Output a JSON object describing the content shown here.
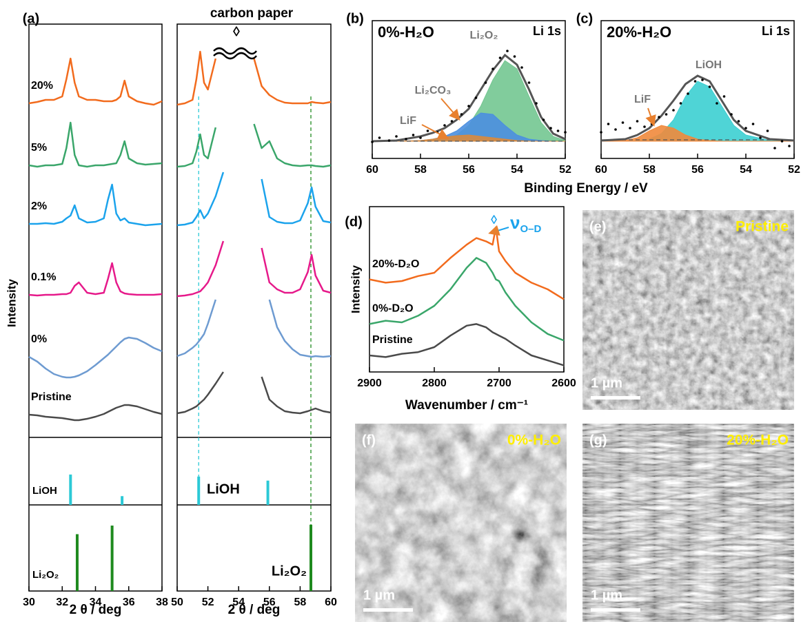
{
  "chart_data": [
    {
      "type": "line",
      "panel_label": "(a)",
      "xlabel": "2 θ / deg",
      "ylabel": "Intensity",
      "xlim": [
        30,
        38
      ],
      "xticks": [
        30,
        32,
        34,
        36,
        38
      ],
      "ylim": [
        0,
        600
      ],
      "x": [
        30,
        30.5,
        31,
        31.5,
        32,
        32.25,
        32.5,
        32.75,
        33,
        33.5,
        34,
        34.5,
        34.75,
        35,
        35.25,
        35.5,
        35.75,
        36,
        36.5,
        37,
        37.5,
        38
      ],
      "series": [
        {
          "name": "20%",
          "color": "#f26b1d",
          "values": [
            485,
            487,
            490,
            490,
            495,
            520,
            550,
            515,
            495,
            490,
            490,
            488,
            488,
            488,
            490,
            495,
            518,
            495,
            488,
            485,
            483,
            488
          ]
        },
        {
          "name": "5%",
          "color": "#3aa66a",
          "values": [
            395,
            393,
            395,
            395,
            397,
            420,
            457,
            410,
            395,
            393,
            395,
            395,
            396,
            397,
            398,
            410,
            430,
            405,
            398,
            396,
            397,
            398
          ]
        },
        {
          "name": "2%",
          "color": "#1ba3ec",
          "values": [
            310,
            310,
            311,
            310,
            313,
            318,
            322,
            337,
            318,
            312,
            313,
            318,
            345,
            367,
            325,
            315,
            318,
            312,
            310,
            308,
            309,
            310
          ]
        },
        {
          "name": "0.1%",
          "color": "#e6198a",
          "values": [
            207,
            206,
            207,
            207,
            208,
            208,
            210,
            220,
            225,
            210,
            208,
            210,
            230,
            253,
            225,
            212,
            209,
            208,
            207,
            207,
            207,
            208
          ]
        },
        {
          "name": "0%",
          "color": "#6e9bd1",
          "values": [
            117,
            110,
            100,
            92,
            88,
            87,
            87,
            88,
            90,
            96,
            105,
            115,
            120,
            126,
            132,
            138,
            143,
            145,
            143,
            137,
            130,
            125
          ]
        },
        {
          "name": "Pristine",
          "color": "#4a4a4a",
          "values": [
            33,
            32,
            30,
            29,
            28,
            27,
            26,
            25,
            25,
            27,
            30,
            34,
            37,
            40,
            43,
            45,
            47,
            47,
            45,
            41,
            37,
            34
          ]
        }
      ],
      "ref_ylim": [
        0,
        100
      ],
      "references": [
        {
          "name": "LiOH",
          "color": "#2bc9d6",
          "x": [
            32.5,
            35.6
          ],
          "values": [
            45,
            13
          ]
        },
        {
          "name": "Li₂O₂",
          "color": "#1e8a1e",
          "x": [
            32.9,
            35.0
          ],
          "values": [
            66,
            76
          ]
        }
      ]
    },
    {
      "type": "line",
      "title": "carbon paper",
      "annotation": "◊",
      "xlabel": "2 θ / deg",
      "xlim": [
        50,
        60
      ],
      "xticks": [
        50,
        52,
        54,
        56,
        58,
        60
      ],
      "ylim": [
        0,
        600
      ],
      "x": [
        50,
        50.5,
        51,
        51.25,
        51.5,
        51.75,
        52,
        52.5,
        53,
        53.5,
        54,
        54.5,
        55,
        55.5,
        56,
        56.5,
        57,
        57.5,
        58,
        58.5,
        58.75,
        59,
        59.5,
        60
      ],
      "series": [
        {
          "color": "#f26b1d",
          "values": [
            483,
            485,
            490,
            520,
            560,
            515,
            505,
            550,
            null,
            null,
            null,
            null,
            550,
            510,
            497,
            490,
            486,
            485,
            485,
            485,
            487,
            486,
            485,
            487
          ]
        },
        {
          "color": "#3aa66a",
          "values": [
            393,
            394,
            398,
            415,
            440,
            410,
            405,
            450,
            null,
            null,
            null,
            null,
            455,
            420,
            430,
            405,
            398,
            395,
            394,
            395,
            395,
            394,
            393,
            395
          ]
        },
        {
          "color": "#1ba3ec",
          "values": [
            308,
            309,
            312,
            320,
            330,
            318,
            325,
            350,
            385,
            null,
            null,
            null,
            null,
            375,
            320,
            313,
            311,
            311,
            315,
            340,
            363,
            335,
            314,
            312
          ]
        },
        {
          "color": "#e6198a",
          "values": [
            205,
            206,
            208,
            210,
            212,
            218,
            225,
            250,
            285,
            null,
            null,
            null,
            null,
            275,
            225,
            215,
            210,
            210,
            215,
            240,
            265,
            235,
            213,
            210
          ]
        },
        {
          "color": "#6e9bd1",
          "values": [
            118,
            122,
            130,
            135,
            142,
            150,
            165,
            200,
            null,
            null,
            null,
            null,
            null,
            null,
            200,
            160,
            140,
            128,
            120,
            118,
            117,
            118,
            117,
            118
          ]
        },
        {
          "color": "#4a4a4a",
          "values": [
            35,
            37,
            42,
            45,
            50,
            55,
            62,
            78,
            95,
            null,
            null,
            null,
            null,
            88,
            55,
            45,
            38,
            36,
            35,
            38,
            40,
            42,
            38,
            36
          ]
        }
      ],
      "ref_ylim": [
        0,
        100
      ],
      "references": [
        {
          "name": "LiOH",
          "color": "#2bc9d6",
          "x": [
            51.4,
            55.9
          ],
          "values": [
            42,
            36
          ]
        },
        {
          "name": "Li₂O₂",
          "color": "#1e8a1e",
          "x": [
            58.7
          ],
          "values": [
            77
          ]
        }
      ]
    },
    {
      "type": "xps",
      "panel_label": "(b)",
      "title": "0%-H₂O",
      "subtitle": "Li 1s",
      "xlabel": "Binding Energy / eV",
      "xlim": [
        60,
        52
      ],
      "xticks": [
        60,
        58,
        56,
        54,
        52
      ],
      "ylim": [
        0,
        100
      ],
      "baseline": 12.5,
      "points": {
        "x": [
          60,
          59.7,
          59.3,
          59,
          58.6,
          58.3,
          58,
          57.7,
          57.3,
          57,
          56.7,
          56.3,
          56,
          55.7,
          55.3,
          55,
          54.7,
          54.4,
          54.1,
          53.8,
          53.5,
          53.2,
          52.9,
          52.6,
          52.3,
          52
        ],
        "values": [
          12,
          15,
          13,
          16,
          14,
          17,
          15,
          20,
          19,
          24,
          27,
          32,
          38,
          44,
          55,
          65,
          73,
          78,
          74,
          66,
          55,
          40,
          28,
          22,
          20,
          19
        ]
      },
      "x": [
        60,
        59,
        58,
        57.5,
        57,
        56.5,
        56,
        55.5,
        55,
        54.5,
        54,
        53.5,
        53,
        52.5,
        52
      ],
      "envelope": {
        "color": "#555555",
        "values": [
          12.5,
          13,
          16,
          18.5,
          22,
          28,
          36,
          50,
          64,
          75,
          68,
          50,
          30,
          18,
          14
        ]
      },
      "components": [
        {
          "name": "LiF",
          "color": "#d9893c",
          "values": [
            12.5,
            12.5,
            13,
            14,
            15.5,
            16.5,
            17,
            16,
            15,
            14,
            13,
            12.6,
            12.5,
            12.5,
            12.5
          ]
        },
        {
          "name": "Li₂CO₃",
          "color": "#4b8fe0",
          "values": [
            12.5,
            12.5,
            13,
            14,
            16,
            20,
            27,
            33,
            32,
            24,
            17,
            14,
            13,
            12.5,
            12.5
          ]
        },
        {
          "name": "Li₂O₂",
          "color": "#73c691",
          "values": [
            12.5,
            12.5,
            12.6,
            13,
            14,
            17,
            24,
            38,
            57,
            71,
            65,
            45,
            26,
            16,
            13
          ]
        }
      ]
    },
    {
      "type": "xps",
      "panel_label": "(c)",
      "title": "20%-H₂O",
      "subtitle": "Li 1s",
      "xlim": [
        60,
        52
      ],
      "xticks": [
        60,
        58,
        56,
        54,
        52
      ],
      "ylim": [
        0,
        100
      ],
      "baseline": 13.5,
      "points": {
        "x": [
          60,
          59.7,
          59.4,
          59.1,
          58.8,
          58.5,
          58.2,
          57.9,
          57.6,
          57.3,
          57,
          56.7,
          56.4,
          56.1,
          55.8,
          55.5,
          55.2,
          54.9,
          54.6,
          54.3,
          54,
          53.7,
          53.4,
          53.1,
          52.8,
          52.5,
          52.2
        ],
        "values": [
          19,
          25,
          21,
          26,
          22,
          27,
          23,
          25,
          30,
          32,
          35,
          40,
          47,
          56,
          57,
          52,
          40,
          45,
          32,
          27,
          22,
          25,
          15,
          20,
          7.5,
          12.5,
          9
        ]
      },
      "x": [
        60,
        59,
        58.5,
        58,
        57.5,
        57,
        56.5,
        56,
        55.5,
        55,
        54.5,
        54,
        53,
        52
      ],
      "envelope": {
        "color": "#555555",
        "values": [
          13,
          14,
          17,
          22,
          31,
          42,
          54,
          60,
          56,
          42,
          28,
          20,
          14,
          13
        ]
      },
      "components": [
        {
          "name": "LiF",
          "color": "#f0893c",
          "values": [
            12.5,
            13,
            15,
            20,
            24,
            22,
            17,
            14,
            13,
            12.5,
            12.5,
            12.5,
            12.5,
            12.5
          ]
        },
        {
          "name": "LiOH",
          "color": "#3ccfd2",
          "values": [
            12.5,
            12.5,
            13,
            14,
            18,
            28,
            45,
            56,
            52,
            38,
            24,
            17,
            13,
            12.5
          ]
        }
      ]
    },
    {
      "type": "line",
      "panel_label": "(d)",
      "xlabel": "Wavenumber / cm⁻¹",
      "ylabel": "Intensity",
      "xlim": [
        2900,
        2600
      ],
      "xticks": [
        2900,
        2800,
        2700,
        2600
      ],
      "ylim": [
        0,
        100
      ],
      "annotation": "◊",
      "annotation_text": "ν",
      "annotation_sub": "O–D",
      "x": [
        2900,
        2875,
        2850,
        2825,
        2800,
        2775,
        2750,
        2735,
        2720,
        2710,
        2705,
        2700,
        2690,
        2675,
        2650,
        2625,
        2600
      ],
      "series": [
        {
          "name": "20%-D₂O",
          "color": "#f26b1d",
          "values": [
            56,
            54,
            55,
            58,
            60,
            69,
            77,
            81,
            79,
            77,
            87.5,
            73,
            67,
            60,
            54,
            50,
            44
          ]
        },
        {
          "name": "0%-D₂O",
          "color": "#3aa66a",
          "values": [
            29,
            31,
            30,
            34,
            40,
            50,
            63,
            69,
            66,
            60,
            56,
            55,
            48,
            40,
            30,
            23,
            19
          ]
        },
        {
          "name": "Pristine",
          "color": "#4a4a4a",
          "values": [
            10,
            9,
            11,
            12,
            15,
            22,
            28,
            29,
            27,
            24,
            23,
            22,
            20,
            16,
            10,
            7,
            4
          ]
        }
      ]
    }
  ],
  "images": [
    {
      "label": "(e)",
      "caption": "Pristine",
      "scale": "1 µm"
    },
    {
      "label": "(f)",
      "caption": "0%-H₂O",
      "scale": "1 µm"
    },
    {
      "label": "(g)",
      "caption": "20%-H₂O",
      "scale": "1 µm"
    }
  ]
}
